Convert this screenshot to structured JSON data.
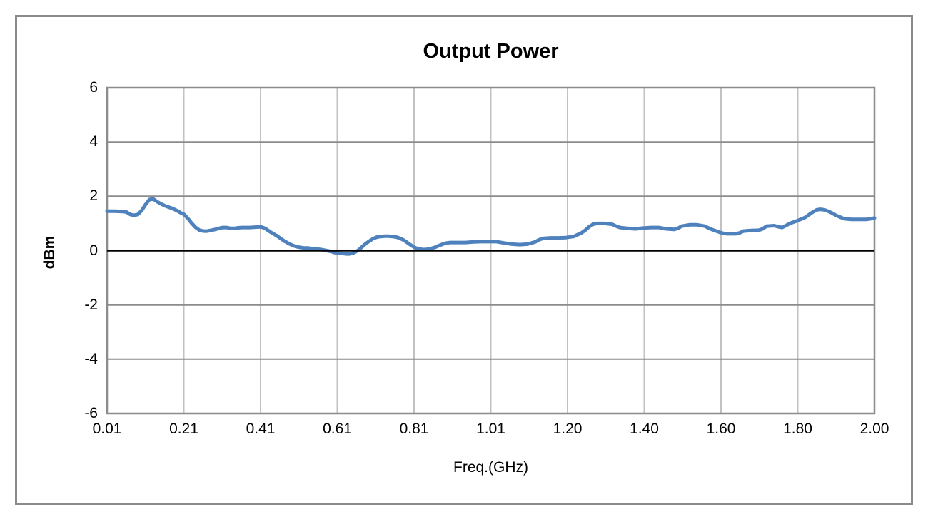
{
  "chart_data": {
    "type": "line",
    "title": "Output Power",
    "xlabel": "Freq.(GHz)",
    "ylabel": "dBm",
    "x_tick_labels": [
      "0.01",
      "0.21",
      "0.41",
      "0.61",
      "0.81",
      "1.01",
      "1.20",
      "1.40",
      "1.60",
      "1.80",
      "2.00"
    ],
    "y_ticks": [
      {
        "label": "6",
        "value": 6
      },
      {
        "label": "4",
        "value": 4
      },
      {
        "label": "2",
        "value": 2
      },
      {
        "label": "0",
        "value": 0
      },
      {
        "label": "-2",
        "value": -2
      },
      {
        "label": "-4",
        "value": -4
      },
      {
        "label": "-6",
        "value": -6
      }
    ],
    "xlim": [
      0.01,
      2.0
    ],
    "ylim": [
      -6,
      6
    ],
    "grid": true,
    "legend_position": "none",
    "colors": {
      "line": "#4f81bd",
      "h_grid": "#8c8c8c",
      "v_grid": "#c2c2c2",
      "zero_axis": "#000000",
      "plot_border": "#8c8c8c",
      "frame_border": "#8a8a8a"
    },
    "series": [
      {
        "name": "Output Power",
        "color": "#4f81bd",
        "points": [
          [
            0.01,
            1.45
          ],
          [
            0.03,
            1.45
          ],
          [
            0.05,
            1.44
          ],
          [
            0.06,
            1.42
          ],
          [
            0.07,
            1.33
          ],
          [
            0.08,
            1.3
          ],
          [
            0.09,
            1.33
          ],
          [
            0.1,
            1.48
          ],
          [
            0.11,
            1.7
          ],
          [
            0.12,
            1.88
          ],
          [
            0.13,
            1.9
          ],
          [
            0.14,
            1.8
          ],
          [
            0.15,
            1.72
          ],
          [
            0.16,
            1.65
          ],
          [
            0.17,
            1.6
          ],
          [
            0.18,
            1.55
          ],
          [
            0.19,
            1.48
          ],
          [
            0.2,
            1.4
          ],
          [
            0.21,
            1.33
          ],
          [
            0.22,
            1.18
          ],
          [
            0.23,
            1.0
          ],
          [
            0.24,
            0.85
          ],
          [
            0.25,
            0.75
          ],
          [
            0.26,
            0.72
          ],
          [
            0.27,
            0.72
          ],
          [
            0.28,
            0.75
          ],
          [
            0.29,
            0.78
          ],
          [
            0.3,
            0.82
          ],
          [
            0.31,
            0.85
          ],
          [
            0.32,
            0.85
          ],
          [
            0.33,
            0.82
          ],
          [
            0.34,
            0.82
          ],
          [
            0.35,
            0.84
          ],
          [
            0.36,
            0.85
          ],
          [
            0.37,
            0.85
          ],
          [
            0.38,
            0.85
          ],
          [
            0.39,
            0.86
          ],
          [
            0.4,
            0.87
          ],
          [
            0.41,
            0.87
          ],
          [
            0.42,
            0.82
          ],
          [
            0.43,
            0.72
          ],
          [
            0.44,
            0.63
          ],
          [
            0.45,
            0.55
          ],
          [
            0.46,
            0.45
          ],
          [
            0.47,
            0.35
          ],
          [
            0.48,
            0.27
          ],
          [
            0.49,
            0.2
          ],
          [
            0.5,
            0.15
          ],
          [
            0.51,
            0.12
          ],
          [
            0.52,
            0.1
          ],
          [
            0.53,
            0.1
          ],
          [
            0.54,
            0.08
          ],
          [
            0.55,
            0.08
          ],
          [
            0.56,
            0.05
          ],
          [
            0.57,
            0.03
          ],
          [
            0.58,
            0.0
          ],
          [
            0.59,
            -0.03
          ],
          [
            0.6,
            -0.07
          ],
          [
            0.61,
            -0.1
          ],
          [
            0.62,
            -0.1
          ],
          [
            0.63,
            -0.12
          ],
          [
            0.64,
            -0.12
          ],
          [
            0.65,
            -0.08
          ],
          [
            0.66,
            0.0
          ],
          [
            0.67,
            0.12
          ],
          [
            0.68,
            0.25
          ],
          [
            0.69,
            0.35
          ],
          [
            0.7,
            0.44
          ],
          [
            0.71,
            0.5
          ],
          [
            0.72,
            0.52
          ],
          [
            0.73,
            0.53
          ],
          [
            0.74,
            0.53
          ],
          [
            0.75,
            0.52
          ],
          [
            0.76,
            0.5
          ],
          [
            0.77,
            0.45
          ],
          [
            0.78,
            0.38
          ],
          [
            0.79,
            0.28
          ],
          [
            0.8,
            0.18
          ],
          [
            0.81,
            0.1
          ],
          [
            0.82,
            0.06
          ],
          [
            0.83,
            0.04
          ],
          [
            0.84,
            0.05
          ],
          [
            0.85,
            0.08
          ],
          [
            0.86,
            0.12
          ],
          [
            0.87,
            0.18
          ],
          [
            0.88,
            0.24
          ],
          [
            0.89,
            0.28
          ],
          [
            0.9,
            0.3
          ],
          [
            0.92,
            0.3
          ],
          [
            0.94,
            0.3
          ],
          [
            0.96,
            0.32
          ],
          [
            0.98,
            0.33
          ],
          [
            1.0,
            0.33
          ],
          [
            1.02,
            0.33
          ],
          [
            1.04,
            0.28
          ],
          [
            1.06,
            0.24
          ],
          [
            1.08,
            0.22
          ],
          [
            1.1,
            0.24
          ],
          [
            1.12,
            0.32
          ],
          [
            1.13,
            0.4
          ],
          [
            1.14,
            0.45
          ],
          [
            1.16,
            0.47
          ],
          [
            1.18,
            0.47
          ],
          [
            1.2,
            0.48
          ],
          [
            1.22,
            0.52
          ],
          [
            1.24,
            0.65
          ],
          [
            1.25,
            0.75
          ],
          [
            1.26,
            0.88
          ],
          [
            1.27,
            0.97
          ],
          [
            1.28,
            1.0
          ],
          [
            1.3,
            1.0
          ],
          [
            1.32,
            0.97
          ],
          [
            1.33,
            0.9
          ],
          [
            1.34,
            0.85
          ],
          [
            1.36,
            0.82
          ],
          [
            1.38,
            0.8
          ],
          [
            1.4,
            0.83
          ],
          [
            1.42,
            0.85
          ],
          [
            1.44,
            0.85
          ],
          [
            1.46,
            0.8
          ],
          [
            1.48,
            0.78
          ],
          [
            1.49,
            0.82
          ],
          [
            1.5,
            0.9
          ],
          [
            1.52,
            0.95
          ],
          [
            1.54,
            0.95
          ],
          [
            1.56,
            0.9
          ],
          [
            1.57,
            0.83
          ],
          [
            1.58,
            0.77
          ],
          [
            1.6,
            0.67
          ],
          [
            1.61,
            0.63
          ],
          [
            1.62,
            0.62
          ],
          [
            1.64,
            0.62
          ],
          [
            1.65,
            0.65
          ],
          [
            1.66,
            0.72
          ],
          [
            1.68,
            0.74
          ],
          [
            1.7,
            0.75
          ],
          [
            1.71,
            0.8
          ],
          [
            1.72,
            0.9
          ],
          [
            1.74,
            0.92
          ],
          [
            1.75,
            0.88
          ],
          [
            1.76,
            0.85
          ],
          [
            1.77,
            0.92
          ],
          [
            1.78,
            1.0
          ],
          [
            1.8,
            1.1
          ],
          [
            1.82,
            1.22
          ],
          [
            1.83,
            1.32
          ],
          [
            1.84,
            1.42
          ],
          [
            1.85,
            1.5
          ],
          [
            1.86,
            1.52
          ],
          [
            1.87,
            1.5
          ],
          [
            1.88,
            1.45
          ],
          [
            1.89,
            1.38
          ],
          [
            1.9,
            1.3
          ],
          [
            1.91,
            1.24
          ],
          [
            1.92,
            1.18
          ],
          [
            1.93,
            1.16
          ],
          [
            1.94,
            1.15
          ],
          [
            1.96,
            1.15
          ],
          [
            1.98,
            1.15
          ],
          [
            1.99,
            1.17
          ],
          [
            2.0,
            1.2
          ]
        ]
      }
    ]
  }
}
